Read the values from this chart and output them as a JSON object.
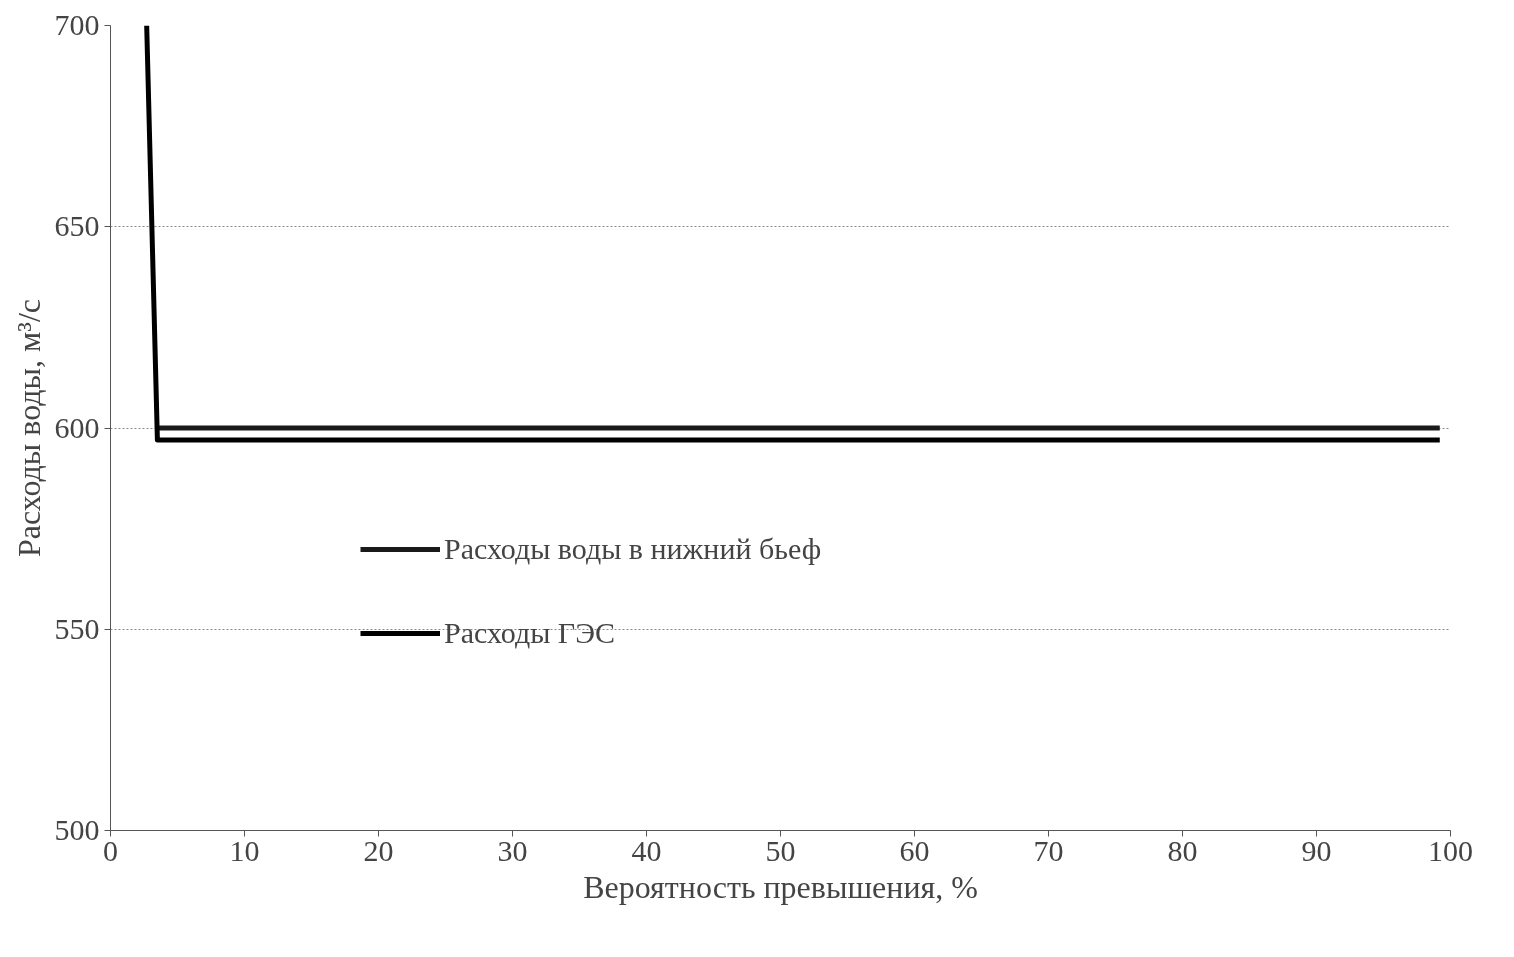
{
  "chart_data": {
    "type": "line",
    "xlabel": "Вероятность превышения, %",
    "ylabel": "Расходы воды, м³/с",
    "series": [
      {
        "name": "Расходы воды в нижний бьеф",
        "color": "#1a1a1a",
        "x": [
          3.5,
          99.2
        ],
        "values": [
          600,
          600
        ]
      },
      {
        "name": "Расходы ГЭС",
        "color": "#000000",
        "x": [
          2.7,
          3.5,
          99.2
        ],
        "values": [
          700,
          597,
          597
        ]
      }
    ],
    "xlim": [
      0,
      100
    ],
    "xticks": [
      0,
      10,
      20,
      30,
      40,
      50,
      60,
      70,
      80,
      90,
      100
    ],
    "ylim": [
      500,
      700
    ],
    "yticks": [
      500,
      550,
      600,
      650,
      700
    ],
    "grid": "y",
    "legend": "left",
    "marker": "none",
    "line_style": "solid"
  }
}
